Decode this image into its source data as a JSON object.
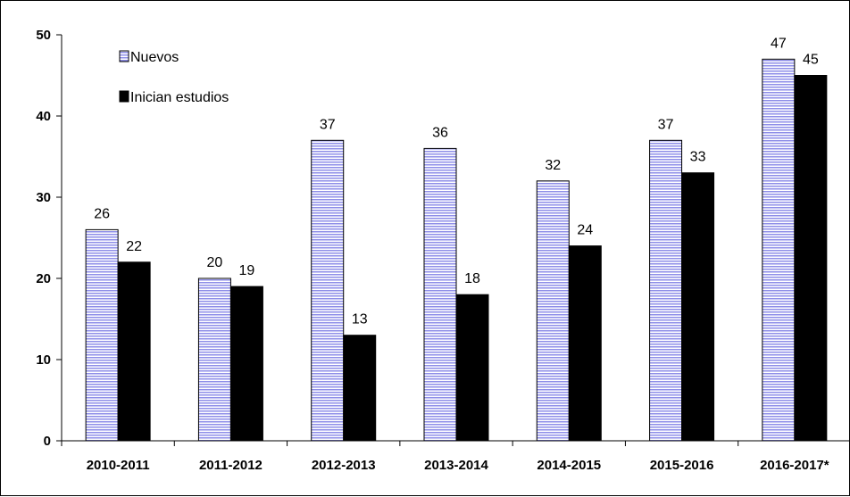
{
  "chart_data": {
    "type": "bar",
    "categories": [
      "2010-2011",
      "2011-2012",
      "2012-2013",
      "2013-2014",
      "2014-2015",
      "2015-2016",
      "2016-2017*"
    ],
    "series": [
      {
        "name": "Nuevos",
        "values": [
          26,
          20,
          37,
          36,
          32,
          37,
          47
        ],
        "color": "#8e8ee8",
        "pattern": "horizontal-stripes"
      },
      {
        "name": "Inician estudios",
        "values": [
          22,
          19,
          13,
          18,
          24,
          33,
          45
        ],
        "color": "#000000",
        "pattern": "solid"
      }
    ],
    "ylim": [
      0,
      50
    ],
    "yticks": [
      0,
      10,
      20,
      30,
      40,
      50
    ],
    "title": "",
    "xlabel": "",
    "ylabel": "",
    "data_labels": true,
    "grid": false,
    "legend_position": "top-left"
  }
}
